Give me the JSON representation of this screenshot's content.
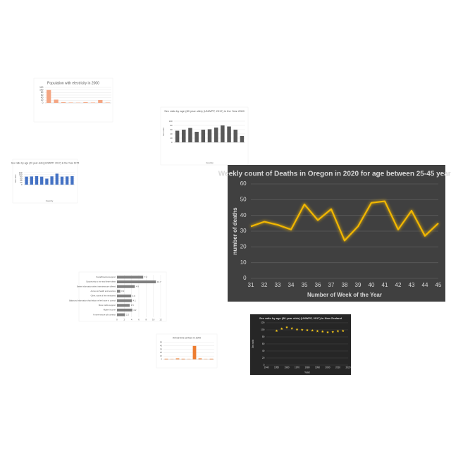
{
  "chart_data": [
    {
      "type": "bar",
      "title": "Population with electricity in 2000",
      "categories": [
        null,
        null,
        null,
        null,
        null,
        null,
        null,
        null,
        null
      ],
      "values": [
        100,
        25,
        5,
        3,
        2,
        5,
        3,
        22,
        3
      ],
      "color": "#f4a582",
      "ylim": [
        0,
        120
      ],
      "yticks": [
        0,
        20,
        40,
        60,
        80,
        100,
        120
      ],
      "grid": true
    },
    {
      "type": "bar",
      "title": "Sex ratio by age (80 year olds) (UNWPP, 2017) in the Year 2000",
      "x_label": "Country",
      "y_label": "Sex ratio",
      "categories": [
        null,
        null,
        null,
        null,
        null,
        null,
        null,
        null,
        null,
        null,
        null
      ],
      "values": [
        55,
        60,
        68,
        50,
        60,
        62,
        70,
        80,
        75,
        60,
        30
      ],
      "color": "#595959",
      "ylim": [
        0,
        100
      ],
      "yticks": [
        0,
        20,
        40,
        60,
        80,
        100
      ],
      "grid": true
    },
    {
      "type": "bar",
      "title": "Sex ratio by age (20 year olds) (UNWPP, 2017) in the Year 1975",
      "x_label": "Country",
      "y_label": "Sex ratio",
      "categories": [
        null,
        null,
        null,
        null,
        null,
        null,
        null,
        null,
        null,
        null
      ],
      "values": [
        80,
        82,
        85,
        80,
        60,
        83,
        110,
        80,
        82,
        85
      ],
      "color": "#4472c4",
      "ylim": [
        0,
        120
      ],
      "yticks": [
        0,
        20,
        40,
        60,
        80,
        100,
        120
      ],
      "grid": true
    },
    {
      "type": "bar",
      "orientation": "horizontal",
      "categories": [
        "Social/financial support",
        "Opportunity to use and share ideas",
        "Better information when interviews are offered",
        "Access to health and services",
        "Other, some of the mentioned",
        "Balanced information that helps me feel more in control",
        "More visible support",
        "Higher income",
        "A more secure job contract"
      ],
      "values": [
        7.2,
        10.7,
        4.9,
        0.9,
        3.9,
        4.1,
        3.5,
        4.2,
        2.2
      ],
      "color": "#7f7f7f",
      "xlim": [
        0,
        12
      ],
      "xticks": [
        0,
        2,
        4,
        6,
        8,
        10,
        12
      ],
      "grid": true
    },
    {
      "type": "bar",
      "title": "Arrival time arrived in 2000",
      "categories": [
        null,
        null,
        null,
        null,
        null,
        null,
        null,
        null,
        null
      ],
      "values": [
        2,
        1,
        3,
        2,
        1,
        40,
        3,
        1,
        2
      ],
      "color": "#ed7d31",
      "ylim": [
        0,
        50
      ],
      "yticks": [
        0,
        10,
        20,
        30,
        40,
        50
      ],
      "grid": true
    },
    {
      "type": "scatter",
      "title": "Sex ratio by age (80 year olds) (UNWPP, 2017) in New Zealand",
      "x_label": "Years",
      "y_label": "Sex ratio",
      "x": [
        1950,
        1955,
        1960,
        1965,
        1970,
        1975,
        1980,
        1985,
        1990,
        1995,
        2000,
        2005,
        2010,
        2015
      ],
      "values": [
        97,
        103,
        107,
        104,
        101,
        100,
        99,
        98,
        96,
        95,
        93,
        94,
        96,
        97
      ],
      "color": "#f0c419",
      "xlim": [
        1940,
        2020
      ],
      "xticks": [
        1940,
        1950,
        1960,
        1970,
        1980,
        1990,
        2000,
        2010,
        2020
      ],
      "ylim": [
        0,
        120
      ],
      "yticks": [
        0,
        20,
        40,
        60,
        80,
        100,
        120
      ],
      "grid": true
    },
    {
      "type": "line",
      "title": "Weekly count of Deaths in Oregon in 2020 for age between 25-45 years",
      "x_label": "Number of Week of the Year",
      "y_label": "number of deaths",
      "categories": [
        "31",
        "32",
        "33",
        "34",
        "35",
        "36",
        "37",
        "38",
        "39",
        "40",
        "41",
        "42",
        "43",
        "44",
        "45"
      ],
      "values": [
        33,
        36,
        34,
        31,
        47,
        37,
        44,
        24,
        33,
        48,
        49,
        31,
        43,
        27,
        35
      ],
      "color": "#f2b705",
      "ylim": [
        0,
        60
      ],
      "yticks": [
        0,
        10,
        20,
        30,
        40,
        50,
        60
      ],
      "grid": true
    }
  ]
}
